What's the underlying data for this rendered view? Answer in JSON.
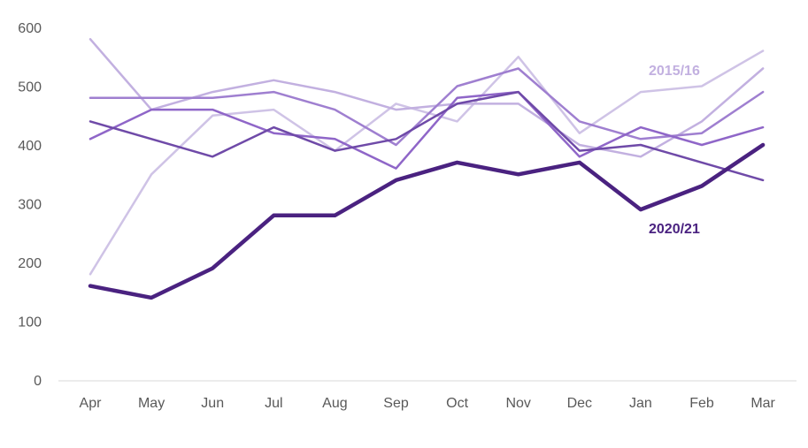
{
  "chart_data": {
    "type": "line",
    "title": "",
    "xlabel": "",
    "ylabel": "",
    "ylim": [
      0,
      600
    ],
    "yticks": [
      0,
      100,
      200,
      300,
      400,
      500,
      600
    ],
    "grid": false,
    "legend": "none",
    "categories": [
      "Apr",
      "May",
      "Jun",
      "Jul",
      "Aug",
      "Sep",
      "Oct",
      "Nov",
      "Dec",
      "Jan",
      "Feb",
      "Mar"
    ],
    "series": [
      {
        "name": "",
        "color": "#cfc3e6",
        "width": 2.5,
        "values": [
          180,
          350,
          450,
          460,
          390,
          470,
          440,
          550,
          420,
          490,
          500,
          560
        ]
      },
      {
        "name": "",
        "color": "#c2b0e0",
        "width": 2.5,
        "values": [
          580,
          460,
          490,
          510,
          490,
          460,
          470,
          470,
          400,
          380,
          440,
          530
        ]
      },
      {
        "name": "",
        "color": "#9f7fd0",
        "width": 2.5,
        "values": [
          480,
          480,
          480,
          490,
          460,
          400,
          500,
          530,
          440,
          410,
          420,
          490
        ]
      },
      {
        "name": "",
        "color": "#8f66c8",
        "width": 2.5,
        "values": [
          410,
          460,
          460,
          420,
          410,
          360,
          480,
          490,
          380,
          430,
          400,
          430
        ]
      },
      {
        "name": "",
        "color": "#6f4aa8",
        "width": 2.5,
        "values": [
          440,
          410,
          380,
          430,
          390,
          410,
          470,
          490,
          390,
          400,
          370,
          340
        ]
      },
      {
        "name": "",
        "color": "#4a2280",
        "width": 4.5,
        "values": [
          160,
          140,
          190,
          280,
          280,
          340,
          370,
          350,
          370,
          290,
          330,
          400
        ]
      }
    ],
    "annotations": [
      {
        "text": "2015/16",
        "color": "#c2b0e0"
      },
      {
        "text": "2020/21",
        "color": "#4a2280"
      }
    ]
  }
}
